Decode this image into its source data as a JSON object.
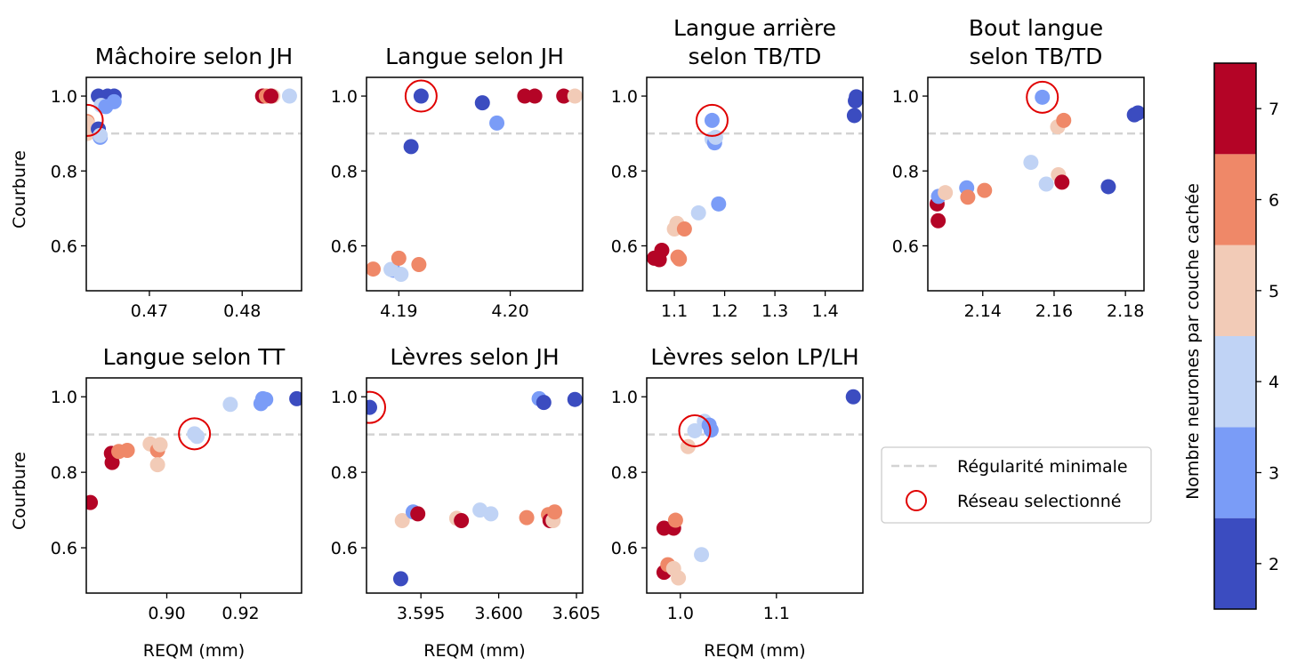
{
  "figure": {
    "legend": {
      "items": [
        {
          "label": "Régularité minimale",
          "kind": "dashed-line",
          "color": "#d3d3d3"
        },
        {
          "label": "Réseau selectionné",
          "kind": "open-circle",
          "color": "#e00000"
        }
      ]
    },
    "colorbar": {
      "label": "Nombre neurones par couche cachée",
      "ticks": [
        "2",
        "3",
        "4",
        "5",
        "6",
        "7"
      ],
      "colors": {
        "2": "#3b4cc0",
        "3": "#7a9cf7",
        "4": "#c0d3f5",
        "5": "#f2cbb7",
        "6": "#ef8868",
        "7": "#b40426"
      }
    },
    "reference_line_y": 0.9
  },
  "chart_data": [
    {
      "type": "scatter",
      "title": "Mâchoire selon JH",
      "xlabel": "",
      "ylabel": "Courbure",
      "xlim": [
        0.4632,
        0.4864
      ],
      "ylim": [
        0.48,
        1.05
      ],
      "xticks": [
        {
          "v": 0.47,
          "label": "0.47"
        },
        {
          "v": 0.48,
          "label": "0.48"
        }
      ],
      "yticks": [
        {
          "v": 0.6,
          "label": "0.6"
        },
        {
          "v": 0.8,
          "label": "0.8"
        },
        {
          "v": 1.0,
          "label": "1.0"
        }
      ],
      "selected": {
        "x": 0.4633,
        "y": 0.935
      },
      "points": [
        {
          "x": 0.4633,
          "y": 0.932,
          "n": 6
        },
        {
          "x": 0.4633,
          "y": 0.928,
          "n": 5
        },
        {
          "x": 0.4633,
          "y": 0.9,
          "n": 5
        },
        {
          "x": 0.4645,
          "y": 0.912,
          "n": 2
        },
        {
          "x": 0.4647,
          "y": 0.89,
          "n": 3
        },
        {
          "x": 0.4647,
          "y": 0.895,
          "n": 4
        },
        {
          "x": 0.4645,
          "y": 1.0,
          "n": 2
        },
        {
          "x": 0.4655,
          "y": 1.0,
          "n": 2
        },
        {
          "x": 0.4662,
          "y": 1.0,
          "n": 2
        },
        {
          "x": 0.4662,
          "y": 0.985,
          "n": 3
        },
        {
          "x": 0.4648,
          "y": 0.975,
          "n": 4
        },
        {
          "x": 0.4653,
          "y": 0.972,
          "n": 3
        },
        {
          "x": 0.4822,
          "y": 1.0,
          "n": 7
        },
        {
          "x": 0.4826,
          "y": 1.0,
          "n": 6
        },
        {
          "x": 0.4833,
          "y": 1.0,
          "n": 5
        },
        {
          "x": 0.4831,
          "y": 1.0,
          "n": 7
        },
        {
          "x": 0.4851,
          "y": 1.0,
          "n": 4
        }
      ]
    },
    {
      "type": "scatter",
      "title": "Langue selon JH",
      "xlabel": "",
      "ylabel": "",
      "xlim": [
        4.1871,
        4.2065
      ],
      "ylim": [
        0.48,
        1.05
      ],
      "xticks": [
        {
          "v": 4.19,
          "label": "4.19"
        },
        {
          "v": 4.2,
          "label": "4.20"
        }
      ],
      "yticks": [
        {
          "v": 0.6,
          "label": "0.6"
        },
        {
          "v": 0.8,
          "label": "0.8"
        },
        {
          "v": 1.0,
          "label": "1.0"
        }
      ],
      "selected": {
        "x": 4.192,
        "y": 1.0
      },
      "points": [
        {
          "x": 4.1877,
          "y": 0.538,
          "n": 6
        },
        {
          "x": 4.1895,
          "y": 0.535,
          "n": 3
        },
        {
          "x": 4.1893,
          "y": 0.537,
          "n": 4
        },
        {
          "x": 4.1902,
          "y": 0.524,
          "n": 4
        },
        {
          "x": 4.19,
          "y": 0.567,
          "n": 6
        },
        {
          "x": 4.1918,
          "y": 0.55,
          "n": 6
        },
        {
          "x": 4.1911,
          "y": 0.865,
          "n": 2
        },
        {
          "x": 4.192,
          "y": 1.0,
          "n": 2
        },
        {
          "x": 4.1975,
          "y": 0.982,
          "n": 2
        },
        {
          "x": 4.1988,
          "y": 0.928,
          "n": 3
        },
        {
          "x": 4.2013,
          "y": 1.0,
          "n": 7
        },
        {
          "x": 4.2022,
          "y": 1.0,
          "n": 7
        },
        {
          "x": 4.2048,
          "y": 1.0,
          "n": 7
        },
        {
          "x": 4.2058,
          "y": 1.0,
          "n": 5
        }
      ]
    },
    {
      "type": "scatter",
      "title": "Langue arrière\nselon TB/TD",
      "xlabel": "",
      "ylabel": "",
      "xlim": [
        1.045,
        1.475
      ],
      "ylim": [
        0.48,
        1.05
      ],
      "xticks": [
        {
          "v": 1.1,
          "label": "1.1"
        },
        {
          "v": 1.2,
          "label": "1.2"
        },
        {
          "v": 1.3,
          "label": "1.3"
        },
        {
          "v": 1.4,
          "label": "1.4"
        }
      ],
      "yticks": [
        {
          "v": 0.6,
          "label": "0.6"
        },
        {
          "v": 0.8,
          "label": "0.8"
        },
        {
          "v": 1.0,
          "label": "1.0"
        }
      ],
      "selected": {
        "x": 1.175,
        "y": 0.935
      },
      "points": [
        {
          "x": 1.06,
          "y": 0.567,
          "n": 7
        },
        {
          "x": 1.07,
          "y": 0.563,
          "n": 7
        },
        {
          "x": 1.075,
          "y": 0.588,
          "n": 7
        },
        {
          "x": 1.1,
          "y": 0.645,
          "n": 5
        },
        {
          "x": 1.105,
          "y": 0.66,
          "n": 5
        },
        {
          "x": 1.12,
          "y": 0.645,
          "n": 6
        },
        {
          "x": 1.107,
          "y": 0.57,
          "n": 6
        },
        {
          "x": 1.11,
          "y": 0.565,
          "n": 6
        },
        {
          "x": 1.148,
          "y": 0.688,
          "n": 4
        },
        {
          "x": 1.188,
          "y": 0.712,
          "n": 3
        },
        {
          "x": 1.175,
          "y": 0.935,
          "n": 3
        },
        {
          "x": 1.175,
          "y": 0.885,
          "n": 4
        },
        {
          "x": 1.18,
          "y": 0.875,
          "n": 3
        },
        {
          "x": 1.182,
          "y": 0.89,
          "n": 4
        },
        {
          "x": 1.462,
          "y": 0.998,
          "n": 2
        },
        {
          "x": 1.46,
          "y": 0.987,
          "n": 2
        },
        {
          "x": 1.458,
          "y": 0.948,
          "n": 2
        }
      ]
    },
    {
      "type": "scatter",
      "title": "Bout langue\nselon TB/TD",
      "xlabel": "",
      "ylabel": "",
      "xlim": [
        2.1246,
        2.1852
      ],
      "ylim": [
        0.48,
        1.05
      ],
      "xticks": [
        {
          "v": 2.14,
          "label": "2.14"
        },
        {
          "v": 2.16,
          "label": "2.16"
        },
        {
          "v": 2.18,
          "label": "2.18"
        }
      ],
      "yticks": [
        {
          "v": 0.6,
          "label": "0.6"
        },
        {
          "v": 0.8,
          "label": "0.8"
        },
        {
          "v": 1.0,
          "label": "1.0"
        }
      ],
      "selected": {
        "x": 2.1567,
        "y": 0.997
      },
      "points": [
        {
          "x": 2.1272,
          "y": 0.712,
          "n": 7
        },
        {
          "x": 2.1275,
          "y": 0.667,
          "n": 7
        },
        {
          "x": 2.1276,
          "y": 0.732,
          "n": 3
        },
        {
          "x": 2.1295,
          "y": 0.742,
          "n": 5
        },
        {
          "x": 2.1355,
          "y": 0.755,
          "n": 3
        },
        {
          "x": 2.1358,
          "y": 0.73,
          "n": 6
        },
        {
          "x": 2.1405,
          "y": 0.748,
          "n": 6
        },
        {
          "x": 2.1535,
          "y": 0.823,
          "n": 4
        },
        {
          "x": 2.1567,
          "y": 0.997,
          "n": 3
        },
        {
          "x": 2.1578,
          "y": 0.765,
          "n": 4
        },
        {
          "x": 2.1612,
          "y": 0.79,
          "n": 5
        },
        {
          "x": 2.161,
          "y": 0.918,
          "n": 5
        },
        {
          "x": 2.1622,
          "y": 0.77,
          "n": 7
        },
        {
          "x": 2.1627,
          "y": 0.935,
          "n": 6
        },
        {
          "x": 2.1752,
          "y": 0.758,
          "n": 2
        },
        {
          "x": 2.1825,
          "y": 0.95,
          "n": 2
        },
        {
          "x": 2.1835,
          "y": 0.955,
          "n": 2
        }
      ]
    },
    {
      "type": "scatter",
      "title": "Langue selon TT",
      "xlabel": "REQM (mm)",
      "ylabel": "Courbure",
      "xlim": [
        0.8782,
        0.9365
      ],
      "ylim": [
        0.48,
        1.05
      ],
      "xticks": [
        {
          "v": 0.9,
          "label": "0.90"
        },
        {
          "v": 0.92,
          "label": "0.92"
        }
      ],
      "yticks": [
        {
          "v": 0.6,
          "label": "0.6"
        },
        {
          "v": 0.8,
          "label": "0.8"
        },
        {
          "v": 1.0,
          "label": "1.0"
        }
      ],
      "selected": {
        "x": 0.9075,
        "y": 0.902
      },
      "points": [
        {
          "x": 0.8793,
          "y": 0.72,
          "n": 7
        },
        {
          "x": 0.885,
          "y": 0.85,
          "n": 7
        },
        {
          "x": 0.8852,
          "y": 0.826,
          "n": 7
        },
        {
          "x": 0.887,
          "y": 0.855,
          "n": 6
        },
        {
          "x": 0.8893,
          "y": 0.858,
          "n": 6
        },
        {
          "x": 0.8955,
          "y": 0.875,
          "n": 5
        },
        {
          "x": 0.8975,
          "y": 0.858,
          "n": 6
        },
        {
          "x": 0.8975,
          "y": 0.82,
          "n": 5
        },
        {
          "x": 0.8982,
          "y": 0.873,
          "n": 5
        },
        {
          "x": 0.9075,
          "y": 0.902,
          "n": 4
        },
        {
          "x": 0.9082,
          "y": 0.895,
          "n": 4
        },
        {
          "x": 0.9172,
          "y": 0.98,
          "n": 4
        },
        {
          "x": 0.9255,
          "y": 0.982,
          "n": 3
        },
        {
          "x": 0.926,
          "y": 0.995,
          "n": 3
        },
        {
          "x": 0.9268,
          "y": 0.993,
          "n": 3
        },
        {
          "x": 0.9352,
          "y": 0.995,
          "n": 2
        }
      ]
    },
    {
      "type": "scatter",
      "title": "Lèvres selon JH",
      "xlabel": "REQM (mm)",
      "ylabel": "",
      "xlim": [
        3.5915,
        3.6054
      ],
      "ylim": [
        0.48,
        1.05
      ],
      "xticks": [
        {
          "v": 3.595,
          "label": "3.595"
        },
        {
          "v": 3.6,
          "label": "3.600"
        },
        {
          "v": 3.605,
          "label": "3.605"
        }
      ],
      "yticks": [
        {
          "v": 0.6,
          "label": "0.6"
        },
        {
          "v": 0.8,
          "label": "0.8"
        },
        {
          "v": 1.0,
          "label": "1.0"
        }
      ],
      "selected": {
        "x": 3.5917,
        "y": 0.972
      },
      "points": [
        {
          "x": 3.5917,
          "y": 0.972,
          "n": 2
        },
        {
          "x": 3.5937,
          "y": 0.518,
          "n": 2
        },
        {
          "x": 3.5938,
          "y": 0.672,
          "n": 5
        },
        {
          "x": 3.5945,
          "y": 0.695,
          "n": 3
        },
        {
          "x": 3.5948,
          "y": 0.69,
          "n": 7
        },
        {
          "x": 3.5973,
          "y": 0.678,
          "n": 5
        },
        {
          "x": 3.5976,
          "y": 0.672,
          "n": 7
        },
        {
          "x": 3.5988,
          "y": 0.7,
          "n": 4
        },
        {
          "x": 3.5995,
          "y": 0.69,
          "n": 4
        },
        {
          "x": 3.6018,
          "y": 0.68,
          "n": 6
        },
        {
          "x": 3.6026,
          "y": 0.995,
          "n": 3
        },
        {
          "x": 3.6029,
          "y": 0.985,
          "n": 2
        },
        {
          "x": 3.6032,
          "y": 0.688,
          "n": 6
        },
        {
          "x": 3.6033,
          "y": 0.672,
          "n": 7
        },
        {
          "x": 3.6035,
          "y": 0.672,
          "n": 5
        },
        {
          "x": 3.6036,
          "y": 0.695,
          "n": 6
        },
        {
          "x": 3.6049,
          "y": 0.993,
          "n": 2
        }
      ]
    },
    {
      "type": "scatter",
      "title": "Lèvres selon LP/LH",
      "xlabel": "REQM (mm)",
      "ylabel": "",
      "xlim": [
        0.965,
        1.19
      ],
      "ylim": [
        0.48,
        1.05
      ],
      "xticks": [
        {
          "v": 1.0,
          "label": "1.0"
        },
        {
          "v": 1.1,
          "label": "1.1"
        }
      ],
      "yticks": [
        {
          "v": 0.6,
          "label": "0.6"
        },
        {
          "v": 0.8,
          "label": "0.8"
        },
        {
          "v": 1.0,
          "label": "1.0"
        }
      ],
      "selected": {
        "x": 1.015,
        "y": 0.91
      },
      "points": [
        {
          "x": 0.983,
          "y": 0.652,
          "n": 7
        },
        {
          "x": 0.993,
          "y": 0.652,
          "n": 7
        },
        {
          "x": 0.983,
          "y": 0.535,
          "n": 7
        },
        {
          "x": 0.987,
          "y": 0.555,
          "n": 6
        },
        {
          "x": 0.993,
          "y": 0.545,
          "n": 5
        },
        {
          "x": 0.998,
          "y": 0.52,
          "n": 5
        },
        {
          "x": 0.995,
          "y": 0.673,
          "n": 6
        },
        {
          "x": 1.008,
          "y": 0.868,
          "n": 5
        },
        {
          "x": 1.015,
          "y": 0.91,
          "n": 4
        },
        {
          "x": 1.022,
          "y": 0.582,
          "n": 4
        },
        {
          "x": 1.025,
          "y": 0.935,
          "n": 4
        },
        {
          "x": 1.03,
          "y": 0.925,
          "n": 3
        },
        {
          "x": 1.032,
          "y": 0.912,
          "n": 3
        },
        {
          "x": 1.18,
          "y": 1.0,
          "n": 2
        }
      ]
    }
  ]
}
